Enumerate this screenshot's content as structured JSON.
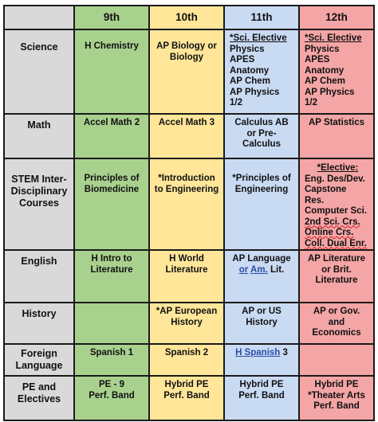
{
  "headers": {
    "grade9": "9th",
    "grade10": "10th",
    "grade11": "11th",
    "grade12": "12th"
  },
  "rows": {
    "science": {
      "label": "Science",
      "g9": "H Chemistry",
      "g10": [
        "AP Biology or",
        "Biology"
      ],
      "g11": [
        "*Sci. Elective",
        "Physics",
        "APES",
        "Anatomy",
        "AP Chem",
        "AP Physics",
        "1/2"
      ],
      "g12": [
        "*Sci. Elective",
        "Physics",
        "APES",
        "Anatomy",
        "AP Chem",
        "AP Physics",
        "1/2"
      ]
    },
    "math": {
      "label": "Math",
      "g9": "Accel Math 2",
      "g10": "Accel Math 3",
      "g11": [
        "Calculus AB",
        "or Pre-",
        "Calculus"
      ],
      "g12": "AP Statistics"
    },
    "stem": {
      "label": [
        "STEM Inter-",
        "Disciplinary",
        "Courses"
      ],
      "g9": [
        "Principles of",
        "Biomedicine"
      ],
      "g10": [
        "*Introduction",
        "to Engineering"
      ],
      "g11": [
        "*Principles of",
        "Engineering"
      ],
      "g12": [
        "*Elective:",
        "Eng. Des/Dev.",
        "Capstone",
        "Res.",
        "Computer Sci.",
        "2nd Sci. Crs.",
        "Online Crs.",
        "Coll. Dual Enr."
      ]
    },
    "english": {
      "label": "English",
      "g9": [
        "H Intro to",
        "Literature"
      ],
      "g10": [
        "H World",
        "Literature"
      ],
      "g11": {
        "line1": "AP Language",
        "or": "or",
        "am": "Am.",
        "lit": "Lit."
      },
      "g12": [
        "AP Literature",
        "or Brit.",
        "Literature"
      ]
    },
    "history": {
      "label": "History",
      "g9": "",
      "g10": [
        "*AP European",
        "History"
      ],
      "g11": [
        "AP or US",
        "History"
      ],
      "g12": [
        "AP or Gov.",
        "and",
        "Economics"
      ]
    },
    "foreign": {
      "label": [
        "Foreign",
        "Language"
      ],
      "g9": "Spanish 1",
      "g10": "Spanish 2",
      "g11": {
        "link": "H  Spanish",
        "num": "3"
      },
      "g12": ""
    },
    "pe": {
      "label": [
        "PE and",
        "Electives"
      ],
      "g9": [
        "PE - 9",
        "Perf. Band"
      ],
      "g10": [
        "Hybrid PE",
        "Perf. Band"
      ],
      "g11": [
        "Hybrid PE",
        "Perf. Band"
      ],
      "g12": [
        "Hybrid PE",
        "*Theater Arts",
        "Perf. Band"
      ]
    }
  }
}
